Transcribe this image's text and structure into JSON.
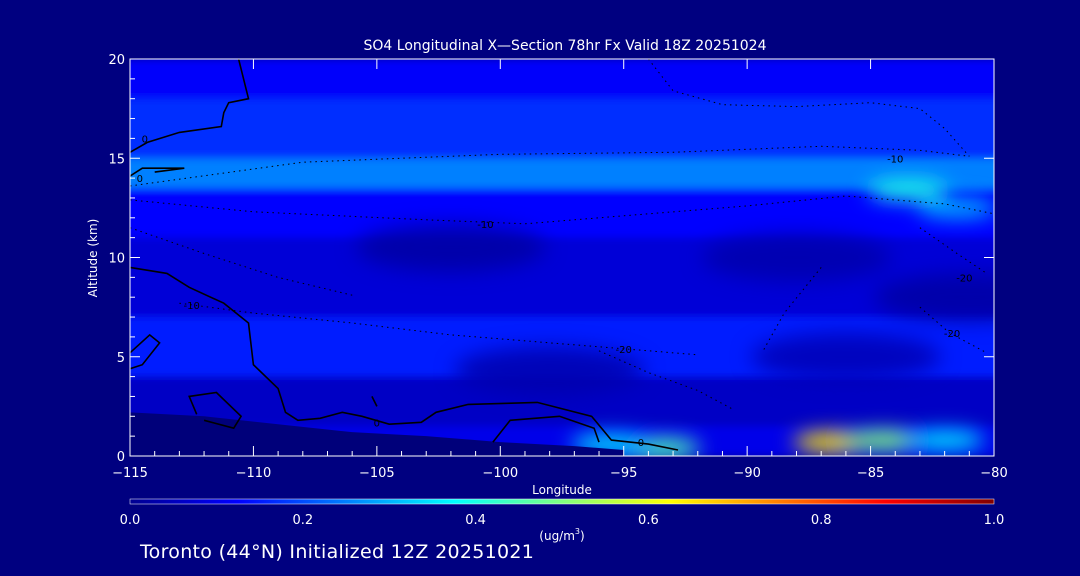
{
  "chart_data": {
    "type": "heatmap",
    "title": "SO4 Longitudinal X—Section 78hr  Fx Valid 18Z 20251024",
    "xlabel": "Longitude",
    "ylabel": "Altitude (km)",
    "xlim": [
      -115,
      -80
    ],
    "ylim": [
      0,
      20
    ],
    "x_ticks": [
      -115,
      -110,
      -105,
      -100,
      -95,
      -90,
      -85,
      -80
    ],
    "x_tick_labels": [
      "−115",
      "−110",
      "−105",
      "−100",
      "−95",
      "−90",
      "−85",
      "−80"
    ],
    "y_ticks": [
      0,
      5,
      10,
      15,
      20
    ],
    "y_tick_labels": [
      "0",
      "5",
      "10",
      "15",
      "20"
    ],
    "colorbar": {
      "min": 0.0,
      "max": 1.0,
      "ticks": [
        0.0,
        0.2,
        0.4,
        0.6,
        0.8,
        1.0
      ],
      "tick_labels": [
        "0.0",
        "0.2",
        "0.4",
        "0.6",
        "0.8",
        "1.0"
      ],
      "unit_main": "(ug/m",
      "unit_sup": "3",
      "unit_end": ")",
      "colors": [
        "#000090",
        "#0000ff",
        "#0080ff",
        "#00ffff",
        "#80ff80",
        "#ffff00",
        "#ff8000",
        "#ff0000",
        "#800000"
      ]
    },
    "fields": {
      "concentration_bands": [
        {
          "alt_range": [
            18,
            20
          ],
          "value": 0.12
        },
        {
          "alt_range": [
            15,
            18
          ],
          "value": 0.17
        },
        {
          "alt_range": [
            13.5,
            15
          ],
          "value": 0.25
        },
        {
          "alt_range": [
            11,
            13.5
          ],
          "value": 0.13
        },
        {
          "alt_range": [
            7,
            11
          ],
          "value": 0.08
        },
        {
          "alt_range": [
            4,
            7
          ],
          "value": 0.15
        },
        {
          "alt_range": [
            1.5,
            4
          ],
          "value": 0.06
        },
        {
          "alt_range": [
            0,
            1.5
          ],
          "value": 0.1
        }
      ],
      "hotspots": [
        {
          "lon": -86.5,
          "alt": 0.7,
          "value": 0.65
        },
        {
          "lon": -84.5,
          "alt": 0.8,
          "value": 0.5
        },
        {
          "lon": -82,
          "alt": 0.8,
          "value": 0.35
        },
        {
          "lon": -93.5,
          "alt": 0.4,
          "value": 0.45
        },
        {
          "lon": -95.5,
          "alt": 0.6,
          "value": 0.35
        },
        {
          "lon": -83.5,
          "alt": 13.4,
          "value": 0.4
        },
        {
          "lon": -81.5,
          "alt": 12.5,
          "value": 0.3
        }
      ],
      "dark_regions": [
        {
          "lon": -102,
          "alt": 10.5,
          "value": 0.02
        },
        {
          "lon": -88,
          "alt": 10,
          "value": 0.03
        },
        {
          "lon": -98,
          "alt": 4.3,
          "value": 0.03
        },
        {
          "lon": -86,
          "alt": 5,
          "value": 0.04
        },
        {
          "lon": -81,
          "alt": 8,
          "value": 0.02
        }
      ]
    },
    "contour_labels": [
      {
        "text": "0",
        "lon": -114.4,
        "alt": 16
      },
      {
        "text": "0",
        "lon": -114.6,
        "alt": 14
      },
      {
        "text": "-10",
        "lon": -100.6,
        "alt": 11.7
      },
      {
        "text": "-10",
        "lon": -84,
        "alt": 15
      },
      {
        "text": "-10",
        "lon": -112.5,
        "alt": 7.6
      },
      {
        "text": "-20",
        "lon": -81.2,
        "alt": 9
      },
      {
        "text": "-20",
        "lon": -81.7,
        "alt": 6.2
      },
      {
        "text": "-20",
        "lon": -95,
        "alt": 5.4
      },
      {
        "text": "0",
        "lon": -94.3,
        "alt": 0.7
      },
      {
        "text": "0",
        "lon": -105,
        "alt": 1.7
      }
    ],
    "solid_contours": [
      [
        [
          -110.6,
          20
        ],
        [
          -110.2,
          18
        ],
        [
          -111,
          17.8
        ],
        [
          -111.2,
          17.3
        ],
        [
          -111.3,
          16.6
        ],
        [
          -113,
          16.3
        ],
        [
          -114.3,
          15.8
        ],
        [
          -115,
          15.3
        ]
      ],
      [
        [
          -115,
          14.1
        ],
        [
          -114.5,
          14.5
        ],
        [
          -112.8,
          14.5
        ],
        [
          -114,
          14.3
        ]
      ],
      [
        [
          -115,
          9.5
        ],
        [
          -113.5,
          9.2
        ],
        [
          -112.6,
          8.5
        ],
        [
          -111.2,
          7.7
        ],
        [
          -110.2,
          6.7
        ],
        [
          -110,
          4.6
        ],
        [
          -109,
          3.4
        ],
        [
          -108.7,
          2.2
        ],
        [
          -108.2,
          1.8
        ],
        [
          -107.3,
          1.9
        ],
        [
          -106.4,
          2.2
        ],
        [
          -105.6,
          2.0
        ],
        [
          -104.5,
          1.6
        ],
        [
          -103.2,
          1.7
        ],
        [
          -102.6,
          2.2
        ],
        [
          -101.3,
          2.6
        ],
        [
          -98.5,
          2.7
        ],
        [
          -96.3,
          2.0
        ],
        [
          -95.5,
          0.8
        ],
        [
          -94,
          0.6
        ],
        [
          -92.8,
          0.3
        ]
      ],
      [
        [
          -100.3,
          0.7
        ],
        [
          -99.6,
          1.8
        ],
        [
          -97.6,
          2.0
        ],
        [
          -96.2,
          1.4
        ],
        [
          -96,
          0.7
        ]
      ],
      [
        [
          -115,
          5.2
        ],
        [
          -114.2,
          6.1
        ],
        [
          -113.8,
          5.7
        ],
        [
          -114.5,
          4.6
        ],
        [
          -115,
          4.4
        ]
      ],
      [
        [
          -112.3,
          2.1
        ],
        [
          -112.6,
          3.0
        ],
        [
          -111.5,
          3.2
        ],
        [
          -110.5,
          2.0
        ],
        [
          -110.8,
          1.4
        ],
        [
          -112,
          1.8
        ]
      ],
      [
        [
          -105.2,
          3.0
        ],
        [
          -105,
          2.5
        ]
      ]
    ],
    "dashed_contours": [
      [
        [
          -115,
          13.6
        ],
        [
          -108,
          14.8
        ],
        [
          -100,
          15.2
        ],
        [
          -93,
          15.3
        ],
        [
          -87,
          15.6
        ],
        [
          -83,
          15.4
        ],
        [
          -81,
          15.1
        ]
      ],
      [
        [
          -115,
          12.9
        ],
        [
          -110,
          12.3
        ],
        [
          -103,
          11.9
        ],
        [
          -99,
          11.7
        ],
        [
          -95,
          12.1
        ],
        [
          -90,
          12.6
        ],
        [
          -86,
          13.1
        ],
        [
          -82,
          12.7
        ],
        [
          -80,
          12.2
        ]
      ],
      [
        [
          -115,
          11.5
        ],
        [
          -112,
          10.2
        ],
        [
          -109,
          9.0
        ],
        [
          -106,
          8.1
        ]
      ],
      [
        [
          -113,
          7.7
        ],
        [
          -110,
          7.2
        ],
        [
          -106,
          6.7
        ],
        [
          -102,
          6.1
        ],
        [
          -97,
          5.6
        ],
        [
          -94,
          5.3
        ],
        [
          -92,
          5.1
        ]
      ],
      [
        [
          -96,
          5.3
        ],
        [
          -94,
          4.2
        ],
        [
          -92,
          3.3
        ],
        [
          -90.5,
          2.3
        ]
      ],
      [
        [
          -94,
          20
        ],
        [
          -93,
          18.4
        ],
        [
          -91,
          17.7
        ],
        [
          -88,
          17.6
        ],
        [
          -85,
          17.8
        ],
        [
          -83,
          17.5
        ],
        [
          -82,
          16.5
        ],
        [
          -81,
          15.1
        ]
      ],
      [
        [
          -83,
          11.5
        ],
        [
          -81.5,
          10.2
        ],
        [
          -80.3,
          9.2
        ]
      ],
      [
        [
          -83,
          7.5
        ],
        [
          -81.8,
          6.2
        ],
        [
          -80.3,
          5.2
        ]
      ],
      [
        [
          -87,
          9.5
        ],
        [
          -88.5,
          7.2
        ],
        [
          -89.4,
          5.2
        ]
      ]
    ]
  },
  "footer": {
    "caption": "Toronto (44°N) Initialized 12Z 20251021"
  },
  "colors": {
    "background": "#000080",
    "text": "#ffffff",
    "contour": "#000000"
  }
}
